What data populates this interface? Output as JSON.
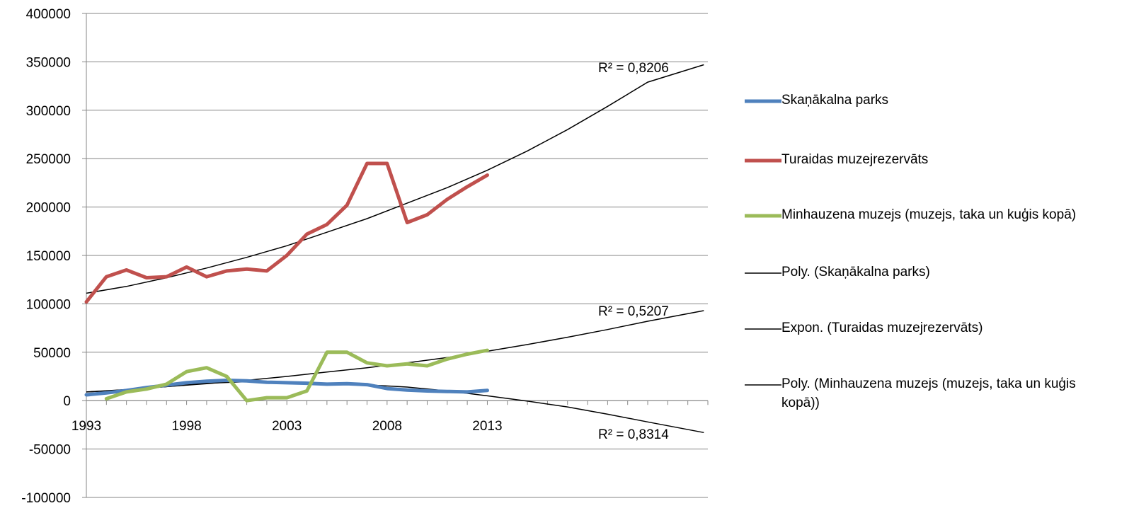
{
  "chart_data": {
    "type": "line",
    "title": "",
    "xlabel": "",
    "ylabel": "",
    "xlim": [
      1993,
      2024
    ],
    "ylim": [
      -100000,
      400000
    ],
    "y_ticks": [
      -100000,
      -50000,
      0,
      50000,
      100000,
      150000,
      200000,
      250000,
      300000,
      350000,
      400000
    ],
    "x_tick_labels": [
      "1993",
      "1998",
      "2003",
      "2008",
      "2013"
    ],
    "grid": "horizontal",
    "legend_position": "right",
    "series": [
      {
        "name": "Skaņākalna parks",
        "color": "#4f81bd",
        "x": [
          1993,
          1994,
          1995,
          1996,
          1997,
          1998,
          1999,
          2000,
          2001,
          2002,
          2003,
          2004,
          2005,
          2006,
          2007,
          2008,
          2009,
          2010,
          2011,
          2012,
          2013
        ],
        "values": [
          6000,
          8000,
          10500,
          13500,
          16000,
          18500,
          20000,
          21000,
          20500,
          19000,
          18500,
          18000,
          17000,
          17500,
          16500,
          12500,
          11000,
          10000,
          9500,
          9000,
          10500
        ]
      },
      {
        "name": "Turaidas muzejrezervāts",
        "color": "#c0504d",
        "x": [
          1993,
          1994,
          1995,
          1996,
          1997,
          1998,
          1999,
          2000,
          2001,
          2002,
          2003,
          2004,
          2005,
          2006,
          2007,
          2008,
          2009,
          2010,
          2011,
          2012,
          2013
        ],
        "values": [
          102000,
          128000,
          135000,
          127000,
          128000,
          138000,
          128000,
          134000,
          136000,
          134000,
          150000,
          172000,
          182000,
          202000,
          245000,
          245000,
          184000,
          192000,
          208000,
          221000,
          233000
        ]
      },
      {
        "name": "Minhauzena muzejs (muzejs, taka un kuģis kopā)",
        "color": "#9bbb59",
        "x": [
          1994,
          1995,
          1996,
          1997,
          1998,
          1999,
          2000,
          2001,
          2002,
          2003,
          2004,
          2005,
          2006,
          2007,
          2008,
          2009,
          2010,
          2011,
          2012,
          2013
        ],
        "values": [
          2000,
          9000,
          12000,
          17000,
          30000,
          34000,
          25000,
          0,
          3000,
          3000,
          10000,
          50000,
          50000,
          39000,
          36000,
          38000,
          36000,
          43000,
          48000,
          52000
        ]
      }
    ],
    "trendlines": [
      {
        "name": "Poly. (Skaņākalna parks)",
        "color": "#000000",
        "x": [
          1993,
          1995,
          1997,
          1999,
          2001,
          2003,
          2005,
          2007,
          2009,
          2011,
          2013,
          2015,
          2017,
          2019,
          2021,
          2023.8
        ],
        "values": [
          9000,
          11000,
          14500,
          18000,
          19500,
          19200,
          17800,
          16300,
          14000,
          10000,
          5000,
          -500,
          -6500,
          -14000,
          -22000,
          -33000
        ],
        "r2_label": "R² = 0,8314"
      },
      {
        "name": "Expon. (Turaidas muzejrezervāts)",
        "color": "#000000",
        "x": [
          1993,
          1995,
          1997,
          1999,
          2001,
          2003,
          2005,
          2007,
          2009,
          2011,
          2013,
          2015,
          2017,
          2019,
          2021,
          2023.8
        ],
        "values": [
          111000,
          118000,
          127000,
          137000,
          148000,
          160000,
          174000,
          188000,
          204000,
          220000,
          238000,
          258000,
          280000,
          304000,
          329000,
          347000
        ],
        "r2_label": "R² = 0,8206"
      },
      {
        "name": "Poly. (Minhauzena muzejs (muzejs, taka un kuģis kopā))",
        "color": "#000000",
        "x": [
          1993,
          1995,
          1997,
          1999,
          2001,
          2003,
          2005,
          2007,
          2009,
          2011,
          2013,
          2015,
          2017,
          2019,
          2021,
          2023.8
        ],
        "values": [
          9000,
          11500,
          14500,
          17500,
          21000,
          25000,
          29500,
          34000,
          39000,
          44500,
          51000,
          58000,
          65500,
          73500,
          82000,
          93000
        ],
        "r2_label": "R² = 0,5207"
      }
    ]
  }
}
